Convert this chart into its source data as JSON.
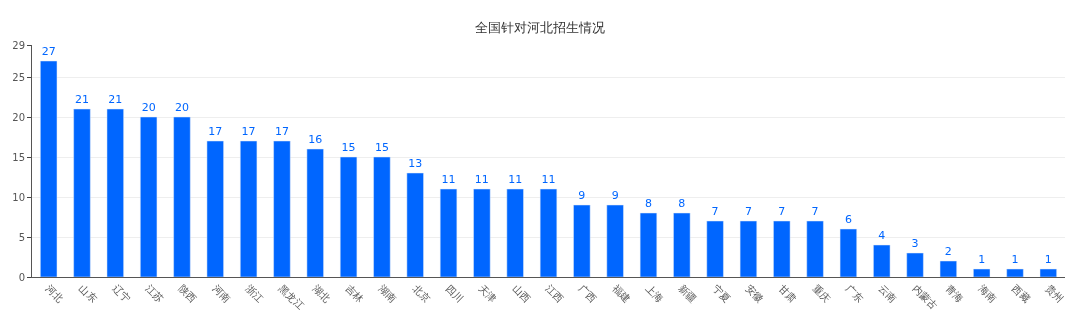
{
  "chart_data": {
    "type": "bar",
    "title": "全国针对河北招生情况",
    "categories": [
      "河北",
      "山东",
      "辽宁",
      "江苏",
      "陕西",
      "河南",
      "浙江",
      "黑龙江",
      "湖北",
      "吉林",
      "湖南",
      "北京",
      "四川",
      "天津",
      "山西",
      "江西",
      "广西",
      "福建",
      "上海",
      "新疆",
      "宁夏",
      "安徽",
      "甘肃",
      "重庆",
      "广东",
      "云南",
      "内蒙古",
      "青海",
      "海南",
      "西藏",
      "贵州"
    ],
    "values": [
      27,
      21,
      21,
      20,
      20,
      17,
      17,
      17,
      16,
      15,
      15,
      13,
      11,
      11,
      11,
      11,
      9,
      9,
      8,
      8,
      7,
      7,
      7,
      7,
      6,
      4,
      3,
      2,
      1,
      1,
      1
    ],
    "color": "#0066ff",
    "ylim": [
      0,
      29
    ],
    "yticks": [
      0,
      5,
      10,
      15,
      20,
      25,
      29
    ],
    "grid": "y",
    "data_labels": true
  }
}
